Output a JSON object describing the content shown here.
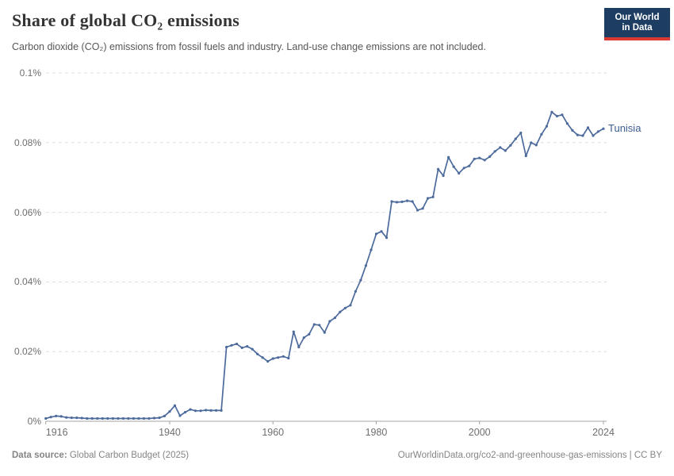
{
  "header": {
    "title": "Share of global CO₂ emissions",
    "subtitle": "Carbon dioxide (CO₂) emissions from fossil fuels and industry. Land-use change emissions are not included.",
    "logo_line1": "Our World",
    "logo_line2": "in Data"
  },
  "footer": {
    "source_label": "Data source:",
    "source_value": " Global Carbon Budget (2025)",
    "link": "OurWorldinData.org/co2-and-greenhouse-gas-emissions | CC BY"
  },
  "colors": {
    "line": "#4c6a9c",
    "series_label": "#3d5c8f",
    "gridline": "#dcdcdc",
    "axis": "#a3a3a3",
    "tick_text": "#6e6e6e",
    "logo_bg": "#1d3d63",
    "logo_red": "#d93a32",
    "footer_text": "#858585"
  },
  "chart_data": {
    "type": "line",
    "title": "Share of global CO₂ emissions",
    "xlabel": "",
    "ylabel": "",
    "xlim": [
      1916,
      2024
    ],
    "ylim": [
      0,
      0.1
    ],
    "grid": "horizontal-dashed",
    "legend_position": "end-of-line",
    "x_ticks": [
      1916,
      1940,
      1960,
      1980,
      2000,
      2024
    ],
    "y_ticks": [
      {
        "value": 0.1,
        "label": "0.1%"
      },
      {
        "value": 0.08,
        "label": "0.08%"
      },
      {
        "value": 0.06,
        "label": "0.06%"
      },
      {
        "value": 0.04,
        "label": "0.04%"
      },
      {
        "value": 0.02,
        "label": "0.02%"
      },
      {
        "value": 0,
        "label": "0%"
      }
    ],
    "unit": "%",
    "series": [
      {
        "name": "Tunisia",
        "color": "#4c6a9c",
        "x": [
          1916,
          1917,
          1918,
          1919,
          1920,
          1921,
          1922,
          1923,
          1924,
          1925,
          1926,
          1927,
          1928,
          1929,
          1930,
          1931,
          1932,
          1933,
          1934,
          1935,
          1936,
          1937,
          1938,
          1939,
          1940,
          1941,
          1942,
          1943,
          1944,
          1945,
          1946,
          1947,
          1948,
          1949,
          1950,
          1951,
          1952,
          1953,
          1954,
          1955,
          1956,
          1957,
          1958,
          1959,
          1960,
          1961,
          1962,
          1963,
          1964,
          1965,
          1966,
          1967,
          1968,
          1969,
          1970,
          1971,
          1972,
          1973,
          1974,
          1975,
          1976,
          1977,
          1978,
          1979,
          1980,
          1981,
          1982,
          1983,
          1984,
          1985,
          1986,
          1987,
          1988,
          1989,
          1990,
          1991,
          1992,
          1993,
          1994,
          1995,
          1996,
          1997,
          1998,
          1999,
          2000,
          2001,
          2002,
          2003,
          2004,
          2005,
          2006,
          2007,
          2008,
          2009,
          2010,
          2011,
          2012,
          2013,
          2014,
          2015,
          2016,
          2017,
          2018,
          2019,
          2020,
          2021,
          2022,
          2023,
          2024
        ],
        "values": [
          0.0008,
          0.0012,
          0.0015,
          0.0014,
          0.0011,
          0.001,
          0.001,
          0.0009,
          0.0008,
          0.0008,
          0.0008,
          0.0008,
          0.0008,
          0.0008,
          0.0008,
          0.0008,
          0.0008,
          0.0008,
          0.0008,
          0.0008,
          0.0008,
          0.0009,
          0.001,
          0.0015,
          0.0028,
          0.0045,
          0.0016,
          0.0026,
          0.0034,
          0.003,
          0.003,
          0.0032,
          0.0031,
          0.0031,
          0.0031,
          0.0213,
          0.0218,
          0.0222,
          0.0211,
          0.0215,
          0.0207,
          0.0193,
          0.0183,
          0.0172,
          0.018,
          0.0183,
          0.0186,
          0.0181,
          0.0257,
          0.0213,
          0.024,
          0.025,
          0.0278,
          0.0276,
          0.0255,
          0.0287,
          0.0297,
          0.0314,
          0.0325,
          0.0333,
          0.0373,
          0.0405,
          0.0447,
          0.0492,
          0.0538,
          0.0545,
          0.0527,
          0.0631,
          0.0629,
          0.063,
          0.0633,
          0.0631,
          0.0606,
          0.0611,
          0.064,
          0.0644,
          0.0724,
          0.0705,
          0.0758,
          0.0731,
          0.0712,
          0.0727,
          0.0733,
          0.0753,
          0.0756,
          0.075,
          0.076,
          0.0775,
          0.0786,
          0.0777,
          0.0792,
          0.0811,
          0.0828,
          0.0762,
          0.08,
          0.0793,
          0.0824,
          0.0847,
          0.0888,
          0.0876,
          0.088,
          0.0855,
          0.0835,
          0.0822,
          0.082,
          0.0843,
          0.082,
          0.0832,
          0.084
        ]
      }
    ]
  }
}
